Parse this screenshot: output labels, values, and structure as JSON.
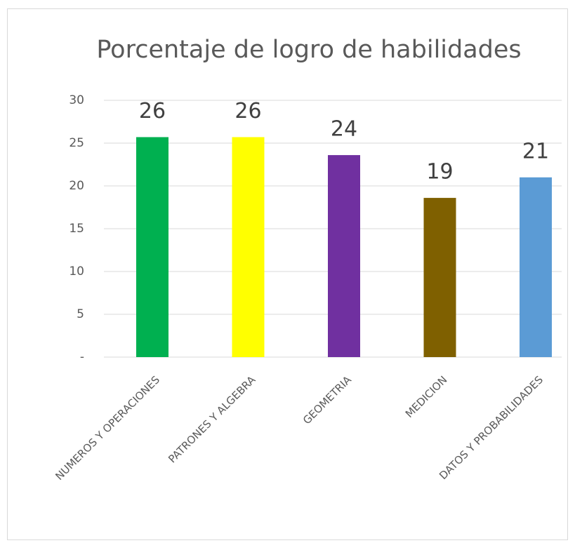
{
  "chart_data": {
    "type": "bar",
    "title": "Porcentaje de logro de habilidades",
    "categories": [
      "NUMEROS Y OPERACIONES",
      "PATRONES Y ALGEBRA",
      "GEOMETRIA",
      "MEDICION",
      "DATOS Y PROBABILIDADES"
    ],
    "values": [
      25.7,
      25.7,
      23.6,
      18.6,
      21.0
    ],
    "value_labels": [
      "26",
      "26",
      "24",
      "19",
      "21"
    ],
    "colors": [
      "#00b050",
      "#ffff00",
      "#7030a0",
      "#7f6000",
      "#5b9bd5"
    ],
    "ylim": [
      0,
      30
    ],
    "yticks": [
      {
        "value": 0,
        "label": "-"
      },
      5,
      10,
      15,
      20,
      25,
      30
    ],
    "grid": true
  }
}
